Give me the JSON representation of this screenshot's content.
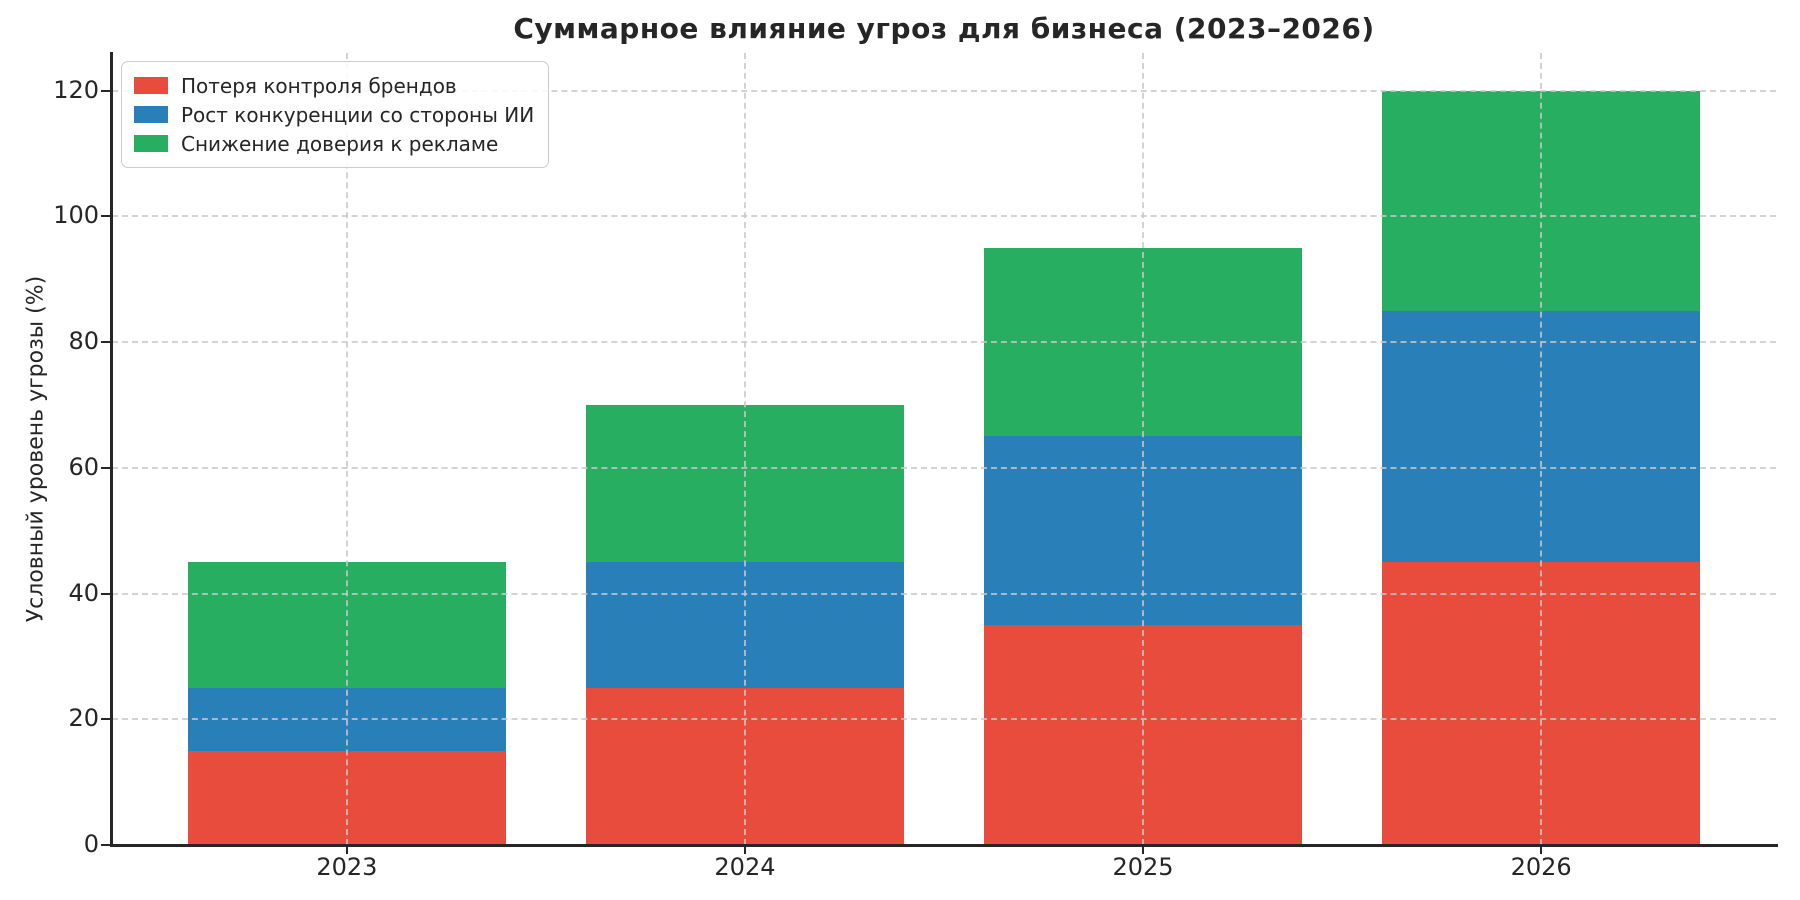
{
  "chart_data": {
    "type": "bar",
    "stacked": true,
    "title": "Суммарное влияние угроз для бизнеса (2023–2026)",
    "ylabel": "Условный уровень угрозы (%)",
    "xlabel": "",
    "categories": [
      "2023",
      "2024",
      "2025",
      "2026"
    ],
    "series": [
      {
        "name": "Потеря контроля брендов",
        "color": "#e74c3c",
        "values": [
          15,
          25,
          35,
          45
        ]
      },
      {
        "name": "Рост конкуренции со стороны ИИ",
        "color": "#2980b9",
        "values": [
          10,
          20,
          30,
          40
        ]
      },
      {
        "name": "Снижение доверия к рекламе",
        "color": "#27ae60",
        "values": [
          20,
          25,
          30,
          35
        ]
      }
    ],
    "stack_totals": [
      45,
      70,
      95,
      120
    ],
    "yticks": [
      0,
      20,
      40,
      60,
      80,
      100,
      120
    ],
    "ylim": [
      0,
      126
    ],
    "xlim": [
      -0.59,
      3.59
    ],
    "bar_width": 0.8,
    "grid": {
      "style": "dashed",
      "color": "#c8c8c8",
      "axes": "both",
      "over_bars": true
    },
    "legend": {
      "position": "upper-left"
    }
  },
  "style": {
    "background": "#ffffff",
    "text_color": "#262626",
    "spine_color": "#262626"
  }
}
